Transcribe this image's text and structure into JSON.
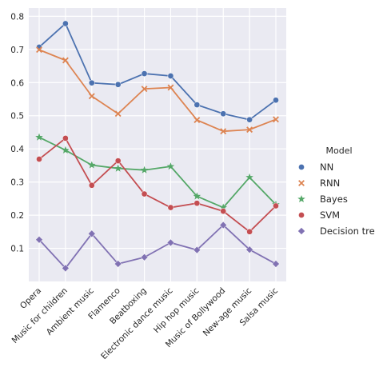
{
  "chart_data": {
    "type": "line",
    "categories": [
      "Opera",
      "Music for children",
      "Ambient music",
      "Flamenco",
      "Beatboxing",
      "Electronic dance music",
      "Hip hop music",
      "Music of Bollywood",
      "New-age music",
      "Salsa music"
    ],
    "ylim": [
      0.0,
      0.825
    ],
    "yticks": [
      "0.1",
      "0.2",
      "0.3",
      "0.4",
      "0.5",
      "0.6",
      "0.7",
      "0.8"
    ],
    "grid": true,
    "legend": {
      "title": "Model",
      "placement": "right, outside"
    },
    "series": [
      {
        "name": "NN",
        "color": "#4c72b0",
        "marker": "circle",
        "values": [
          0.707,
          0.778,
          0.599,
          0.594,
          0.627,
          0.62,
          0.533,
          0.506,
          0.488,
          0.547
        ]
      },
      {
        "name": "RNN",
        "color": "#dd8452",
        "marker": "x",
        "values": [
          0.699,
          0.667,
          0.559,
          0.506,
          0.581,
          0.585,
          0.487,
          0.453,
          0.458,
          0.489
        ]
      },
      {
        "name": "Bayes",
        "color": "#55a868",
        "marker": "star",
        "values": [
          0.435,
          0.396,
          0.351,
          0.341,
          0.336,
          0.347,
          0.257,
          0.223,
          0.314,
          0.232
        ]
      },
      {
        "name": "SVM",
        "color": "#c44e52",
        "marker": "circle",
        "values": [
          0.369,
          0.432,
          0.29,
          0.364,
          0.264,
          0.223,
          0.236,
          0.212,
          0.15,
          0.228
        ]
      },
      {
        "name": "Decision tre",
        "color": "#8172b3",
        "marker": "diamond",
        "values": [
          0.126,
          0.04,
          0.144,
          0.053,
          0.073,
          0.117,
          0.095,
          0.17,
          0.096,
          0.053
        ]
      }
    ]
  }
}
